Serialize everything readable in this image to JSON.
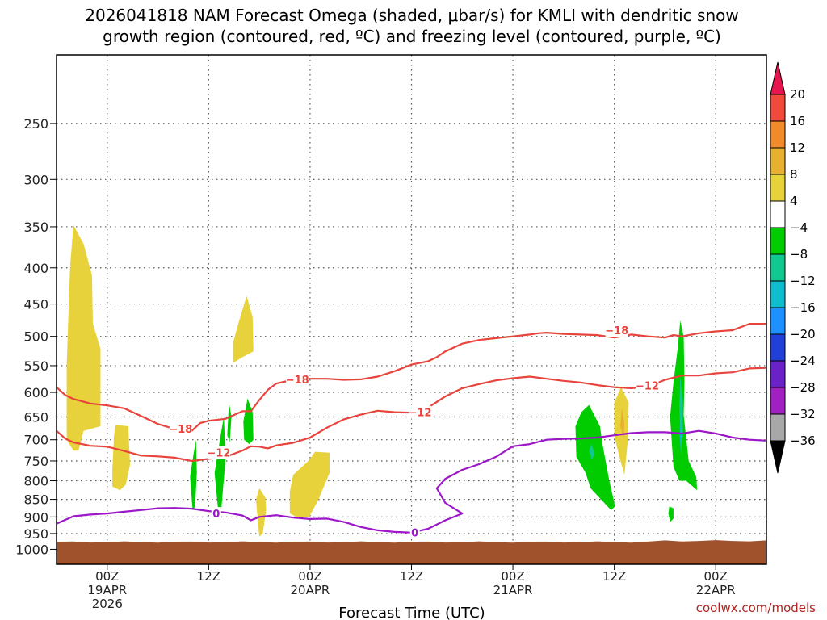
{
  "chart_data": {
    "type": "contour",
    "title_line1": "2026041818 NAM Forecast Omega (shaded, μbar/s) for KMLI with dendritic snow",
    "title_line2": "growth region (contoured, red, ºC) and freezing level (contoured, purple, ºC)",
    "xlabel": "Forecast Time (UTC)",
    "credit": "coolwx.com/models",
    "x_range_hours": [
      18,
      102
    ],
    "y_scale": "log-pressure",
    "y_range_hpa": [
      1050,
      200
    ],
    "y_ticks": [
      250,
      300,
      350,
      400,
      450,
      500,
      550,
      600,
      650,
      700,
      750,
      800,
      850,
      900,
      950,
      1000
    ],
    "grid": true,
    "x_ticks": [
      {
        "h": 24,
        "l1": "00Z",
        "l2": "19APR",
        "l3": "2026"
      },
      {
        "h": 36,
        "l1": "12Z",
        "l2": "",
        "l3": ""
      },
      {
        "h": 48,
        "l1": "00Z",
        "l2": "20APR",
        "l3": ""
      },
      {
        "h": 60,
        "l1": "12Z",
        "l2": "",
        "l3": ""
      },
      {
        "h": 72,
        "l1": "00Z",
        "l2": "21APR",
        "l3": ""
      },
      {
        "h": 84,
        "l1": "12Z",
        "l2": "",
        "l3": ""
      },
      {
        "h": 96,
        "l1": "00Z",
        "l2": "22APR",
        "l3": ""
      }
    ],
    "colorbar": {
      "levels": [
        "20",
        "16",
        "12",
        "8",
        "4",
        "−4",
        "−8",
        "−12",
        "−16",
        "−20",
        "−24",
        "−28",
        "−32",
        "−36"
      ],
      "colors": [
        "#e8144e",
        "#f04a3a",
        "#f08a2a",
        "#e8b030",
        "#e8d23c",
        "#ffffff",
        "#00cc00",
        "#10c890",
        "#10bcd0",
        "#1e90ff",
        "#2040d8",
        "#6a22c8",
        "#a020c0",
        "#a8a8a8",
        "#000000"
      ]
    },
    "surface_color": "#a0522d",
    "contours": [
      {
        "name": "-18",
        "color": "#e8433c",
        "label": "−18",
        "label_positions": [
          [
            32.7,
            675
          ],
          [
            46.5,
            575
          ],
          [
            84.3,
            490
          ]
        ],
        "points": [
          [
            18,
            590
          ],
          [
            19,
            605
          ],
          [
            20,
            613
          ],
          [
            22,
            622
          ],
          [
            24,
            626
          ],
          [
            26,
            632
          ],
          [
            28,
            648
          ],
          [
            30,
            665
          ],
          [
            32,
            676
          ],
          [
            34,
            680
          ],
          [
            35,
            663
          ],
          [
            36,
            658
          ],
          [
            38,
            654
          ],
          [
            40,
            638
          ],
          [
            41,
            638
          ],
          [
            42,
            615
          ],
          [
            43,
            595
          ],
          [
            44,
            583
          ],
          [
            46,
            576
          ],
          [
            48,
            574
          ],
          [
            50,
            574
          ],
          [
            52,
            576
          ],
          [
            54,
            575
          ],
          [
            56,
            570
          ],
          [
            58,
            560
          ],
          [
            60,
            548
          ],
          [
            62,
            542
          ],
          [
            63,
            535
          ],
          [
            64,
            525
          ],
          [
            66,
            512
          ],
          [
            68,
            506
          ],
          [
            70,
            503
          ],
          [
            72,
            500
          ],
          [
            74,
            497
          ],
          [
            75,
            495
          ],
          [
            76,
            494
          ],
          [
            78,
            496
          ],
          [
            80,
            497
          ],
          [
            82,
            498
          ],
          [
            84,
            502
          ],
          [
            86,
            497
          ],
          [
            88,
            500
          ],
          [
            90,
            502
          ],
          [
            91,
            498
          ],
          [
            92,
            500
          ],
          [
            94,
            495
          ],
          [
            96,
            492
          ],
          [
            98,
            490
          ],
          [
            100,
            480
          ],
          [
            102,
            480
          ]
        ]
      },
      {
        "name": "-12",
        "color": "#e8433c",
        "label": "−12",
        "label_positions": [
          [
            37.2,
            730
          ],
          [
            61,
            640
          ],
          [
            87.9,
            587
          ]
        ],
        "points": [
          [
            18,
            680
          ],
          [
            19,
            697
          ],
          [
            20,
            706
          ],
          [
            22,
            714
          ],
          [
            24,
            716
          ],
          [
            26,
            726
          ],
          [
            28,
            737
          ],
          [
            30,
            739
          ],
          [
            32,
            742
          ],
          [
            34,
            750
          ],
          [
            36,
            745
          ],
          [
            38,
            740
          ],
          [
            40,
            725
          ],
          [
            41,
            715
          ],
          [
            42,
            716
          ],
          [
            43,
            720
          ],
          [
            44,
            713
          ],
          [
            46,
            707
          ],
          [
            48,
            695
          ],
          [
            50,
            673
          ],
          [
            52,
            655
          ],
          [
            54,
            645
          ],
          [
            56,
            637
          ],
          [
            58,
            640
          ],
          [
            60,
            641
          ],
          [
            61,
            640
          ],
          [
            62,
            630
          ],
          [
            64,
            608
          ],
          [
            66,
            592
          ],
          [
            68,
            584
          ],
          [
            70,
            577
          ],
          [
            72,
            573
          ],
          [
            74,
            570
          ],
          [
            76,
            574
          ],
          [
            78,
            578
          ],
          [
            80,
            581
          ],
          [
            82,
            586
          ],
          [
            84,
            590
          ],
          [
            86,
            592
          ],
          [
            88,
            589
          ],
          [
            90,
            576
          ],
          [
            92,
            568
          ],
          [
            94,
            568
          ],
          [
            96,
            564
          ],
          [
            98,
            562
          ],
          [
            100,
            555
          ],
          [
            102,
            554
          ]
        ]
      },
      {
        "name": "0",
        "color": "#9b17c8",
        "label": "0",
        "label_positions": [
          [
            36.9,
            890
          ],
          [
            60.4,
            946
          ]
        ],
        "points": [
          [
            18,
            920
          ],
          [
            20,
            898
          ],
          [
            22,
            893
          ],
          [
            24,
            890
          ],
          [
            26,
            885
          ],
          [
            28,
            880
          ],
          [
            30,
            875
          ],
          [
            32,
            874
          ],
          [
            34,
            876
          ],
          [
            36,
            883
          ],
          [
            38,
            887
          ],
          [
            40,
            896
          ],
          [
            41,
            910
          ],
          [
            42,
            900
          ],
          [
            44,
            895
          ],
          [
            46,
            902
          ],
          [
            48,
            906
          ],
          [
            50,
            905
          ],
          [
            52,
            915
          ],
          [
            54,
            930
          ],
          [
            56,
            940
          ],
          [
            58,
            945
          ],
          [
            60,
            947
          ],
          [
            62,
            935
          ],
          [
            64,
            910
          ],
          [
            66,
            890
          ],
          [
            64,
            860
          ],
          [
            63,
            820
          ],
          [
            64,
            795
          ],
          [
            66,
            772
          ],
          [
            68,
            758
          ],
          [
            70,
            740
          ],
          [
            72,
            715
          ],
          [
            74,
            710
          ],
          [
            76,
            700
          ],
          [
            78,
            698
          ],
          [
            80,
            697
          ],
          [
            82,
            695
          ],
          [
            84,
            690
          ],
          [
            86,
            685
          ],
          [
            88,
            683
          ],
          [
            90,
            683
          ],
          [
            92,
            686
          ],
          [
            94,
            680
          ],
          [
            96,
            686
          ],
          [
            98,
            695
          ],
          [
            100,
            700
          ],
          [
            102,
            702
          ]
        ]
      }
    ],
    "omega_regions": [
      {
        "name": "yellow-a",
        "color": "#e8d23c",
        "points": [
          [
            19.2,
            700
          ],
          [
            19.2,
            550
          ],
          [
            19.6,
            400
          ],
          [
            20,
            348
          ],
          [
            21.2,
            370
          ],
          [
            22.2,
            410
          ],
          [
            22.3,
            480
          ],
          [
            23.2,
            520
          ],
          [
            23.2,
            670
          ],
          [
            21.2,
            680
          ],
          [
            20.6,
            725
          ],
          [
            20,
            725
          ]
        ]
      },
      {
        "name": "yellow-b",
        "color": "#e8d23c",
        "points": [
          [
            24.6,
            815
          ],
          [
            24.6,
            770
          ],
          [
            24.8,
            690
          ],
          [
            25,
            667
          ],
          [
            26.5,
            670
          ],
          [
            26.7,
            760
          ],
          [
            26.2,
            810
          ],
          [
            25.5,
            825
          ]
        ]
      },
      {
        "name": "yellow-c",
        "color": "#e8d23c",
        "points": [
          [
            38.9,
            545
          ],
          [
            38.9,
            510
          ],
          [
            39.5,
            480
          ],
          [
            40.5,
            438
          ],
          [
            41.2,
            470
          ],
          [
            41.3,
            525
          ],
          [
            40,
            535
          ]
        ]
      },
      {
        "name": "yellow-d",
        "color": "#e8d23c",
        "points": [
          [
            41.7,
            880
          ],
          [
            41.6,
            850
          ],
          [
            42,
            820
          ],
          [
            42.7,
            845
          ],
          [
            42.8,
            880
          ],
          [
            42.4,
            950
          ],
          [
            42,
            960
          ]
        ]
      },
      {
        "name": "yellow-e",
        "color": "#e8d23c",
        "points": [
          [
            45.6,
            890
          ],
          [
            45.6,
            830
          ],
          [
            46,
            785
          ],
          [
            47.8,
            750
          ],
          [
            48.6,
            728
          ],
          [
            50.3,
            730
          ],
          [
            50.3,
            780
          ],
          [
            49,
            850
          ],
          [
            47.9,
            900
          ],
          [
            46.4,
            900
          ]
        ]
      },
      {
        "name": "yellow-f",
        "color": "#e8d23c",
        "points": [
          [
            84,
            690
          ],
          [
            84,
            620
          ],
          [
            84.8,
            590
          ],
          [
            85.7,
            620
          ],
          [
            85.6,
            700
          ],
          [
            85.2,
            785
          ],
          [
            84.6,
            740
          ]
        ]
      },
      {
        "name": "orange-f",
        "color": "#e8b030",
        "points": [
          [
            84.7,
            670
          ],
          [
            84.9,
            630
          ],
          [
            85.2,
            665
          ],
          [
            85.1,
            695
          ]
        ]
      },
      {
        "name": "green-a",
        "color": "#00cc00",
        "points": [
          [
            33.8,
            790
          ],
          [
            34.2,
            735
          ],
          [
            34.5,
            700
          ],
          [
            34.6,
            780
          ],
          [
            34.4,
            870
          ],
          [
            34.1,
            880
          ]
        ]
      },
      {
        "name": "green-b",
        "color": "#00cc00",
        "points": [
          [
            36.7,
            780
          ],
          [
            37.5,
            680
          ],
          [
            37.8,
            650
          ],
          [
            38,
            745
          ],
          [
            37.5,
            875
          ],
          [
            37.1,
            875
          ]
        ]
      },
      {
        "name": "green-c",
        "color": "#00cc00",
        "points": [
          [
            38.2,
            690
          ],
          [
            38.4,
            620
          ],
          [
            38.7,
            650
          ],
          [
            38.5,
            705
          ]
        ]
      },
      {
        "name": "green-d",
        "color": "#00cc00",
        "points": [
          [
            40.1,
            660
          ],
          [
            40.6,
            612
          ],
          [
            41.2,
            640
          ],
          [
            41.3,
            700
          ],
          [
            40.8,
            710
          ],
          [
            40.2,
            700
          ]
        ]
      },
      {
        "name": "green-e",
        "color": "#00cc00",
        "points": [
          [
            79.5,
            740
          ],
          [
            79.4,
            670
          ],
          [
            80.1,
            640
          ],
          [
            81,
            625
          ],
          [
            82.3,
            670
          ],
          [
            82.6,
            710
          ],
          [
            83.4,
            800
          ],
          [
            84.1,
            870
          ],
          [
            83.6,
            880
          ],
          [
            81.2,
            820
          ],
          [
            80.6,
            780
          ]
        ]
      },
      {
        "name": "teal-e",
        "color": "#10c890",
        "points": [
          [
            81,
            725
          ],
          [
            81.3,
            710
          ],
          [
            81.7,
            735
          ],
          [
            81.3,
            745
          ]
        ]
      },
      {
        "name": "green-f",
        "color": "#00cc00",
        "points": [
          [
            90.6,
            650
          ],
          [
            91,
            580
          ],
          [
            91.5,
            520
          ],
          [
            91.8,
            475
          ],
          [
            92.2,
            500
          ],
          [
            92.3,
            580
          ],
          [
            92.2,
            645
          ],
          [
            92.8,
            750
          ],
          [
            93.7,
            790
          ],
          [
            93.8,
            825
          ],
          [
            92.5,
            800
          ],
          [
            91.7,
            800
          ],
          [
            91,
            765
          ]
        ]
      },
      {
        "name": "teal-f",
        "color": "#10c890",
        "points": [
          [
            91.7,
            620
          ],
          [
            91.8,
            570
          ],
          [
            92.1,
            620
          ],
          [
            92.1,
            695
          ],
          [
            91.8,
            700
          ]
        ]
      },
      {
        "name": "cyan-f",
        "color": "#10bcd0",
        "points": [
          [
            91.75,
            690
          ],
          [
            91.85,
            660
          ],
          [
            92,
            690
          ],
          [
            91.9,
            740
          ]
        ]
      },
      {
        "name": "green-g",
        "color": "#00cc00",
        "points": [
          [
            90.4,
            890
          ],
          [
            90.5,
            870
          ],
          [
            91,
            875
          ],
          [
            91,
            905
          ],
          [
            90.6,
            915
          ]
        ]
      }
    ]
  }
}
